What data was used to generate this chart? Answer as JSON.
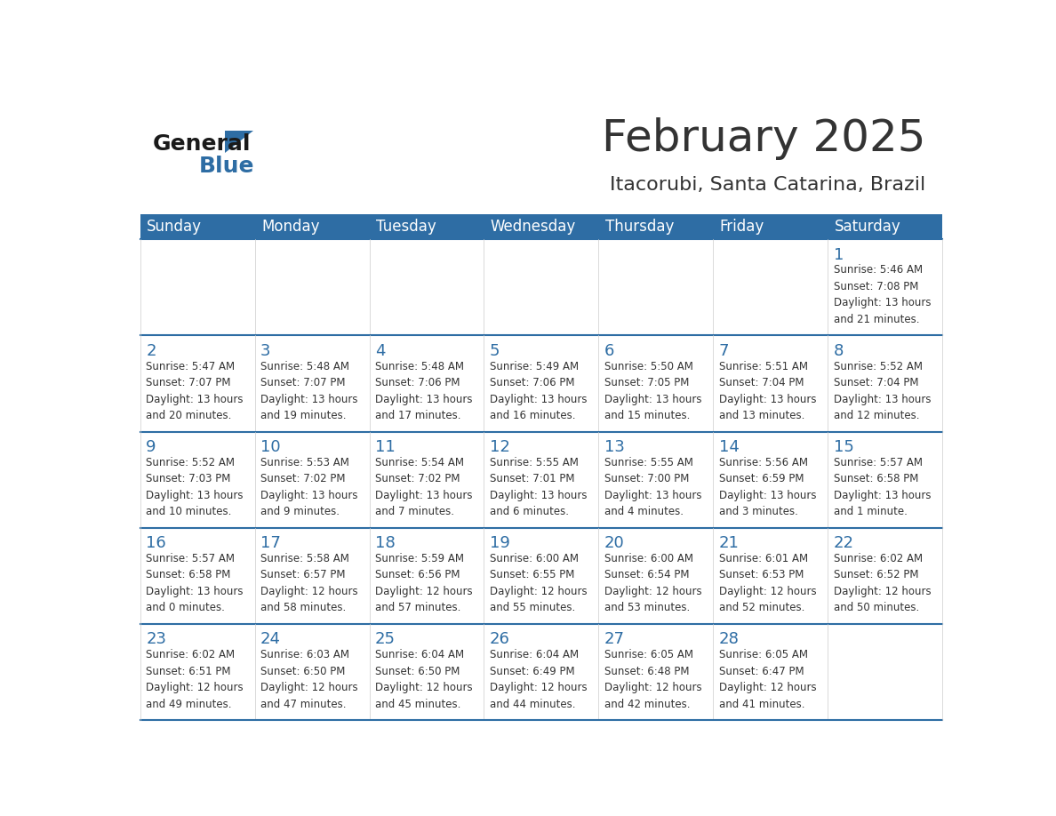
{
  "title": "February 2025",
  "subtitle": "Itacorubi, Santa Catarina, Brazil",
  "header_bg": "#2E6DA4",
  "header_text": "#FFFFFF",
  "border_color": "#2E6DA4",
  "day_headers": [
    "Sunday",
    "Monday",
    "Tuesday",
    "Wednesday",
    "Thursday",
    "Friday",
    "Saturday"
  ],
  "calendar_data": [
    [
      null,
      null,
      null,
      null,
      null,
      null,
      {
        "day": 1,
        "sunrise": "5:46 AM",
        "sunset": "7:08 PM",
        "daylight": "13 hours\nand 21 minutes."
      }
    ],
    [
      {
        "day": 2,
        "sunrise": "5:47 AM",
        "sunset": "7:07 PM",
        "daylight": "13 hours\nand 20 minutes."
      },
      {
        "day": 3,
        "sunrise": "5:48 AM",
        "sunset": "7:07 PM",
        "daylight": "13 hours\nand 19 minutes."
      },
      {
        "day": 4,
        "sunrise": "5:48 AM",
        "sunset": "7:06 PM",
        "daylight": "13 hours\nand 17 minutes."
      },
      {
        "day": 5,
        "sunrise": "5:49 AM",
        "sunset": "7:06 PM",
        "daylight": "13 hours\nand 16 minutes."
      },
      {
        "day": 6,
        "sunrise": "5:50 AM",
        "sunset": "7:05 PM",
        "daylight": "13 hours\nand 15 minutes."
      },
      {
        "day": 7,
        "sunrise": "5:51 AM",
        "sunset": "7:04 PM",
        "daylight": "13 hours\nand 13 minutes."
      },
      {
        "day": 8,
        "sunrise": "5:52 AM",
        "sunset": "7:04 PM",
        "daylight": "13 hours\nand 12 minutes."
      }
    ],
    [
      {
        "day": 9,
        "sunrise": "5:52 AM",
        "sunset": "7:03 PM",
        "daylight": "13 hours\nand 10 minutes."
      },
      {
        "day": 10,
        "sunrise": "5:53 AM",
        "sunset": "7:02 PM",
        "daylight": "13 hours\nand 9 minutes."
      },
      {
        "day": 11,
        "sunrise": "5:54 AM",
        "sunset": "7:02 PM",
        "daylight": "13 hours\nand 7 minutes."
      },
      {
        "day": 12,
        "sunrise": "5:55 AM",
        "sunset": "7:01 PM",
        "daylight": "13 hours\nand 6 minutes."
      },
      {
        "day": 13,
        "sunrise": "5:55 AM",
        "sunset": "7:00 PM",
        "daylight": "13 hours\nand 4 minutes."
      },
      {
        "day": 14,
        "sunrise": "5:56 AM",
        "sunset": "6:59 PM",
        "daylight": "13 hours\nand 3 minutes."
      },
      {
        "day": 15,
        "sunrise": "5:57 AM",
        "sunset": "6:58 PM",
        "daylight": "13 hours\nand 1 minute."
      }
    ],
    [
      {
        "day": 16,
        "sunrise": "5:57 AM",
        "sunset": "6:58 PM",
        "daylight": "13 hours\nand 0 minutes."
      },
      {
        "day": 17,
        "sunrise": "5:58 AM",
        "sunset": "6:57 PM",
        "daylight": "12 hours\nand 58 minutes."
      },
      {
        "day": 18,
        "sunrise": "5:59 AM",
        "sunset": "6:56 PM",
        "daylight": "12 hours\nand 57 minutes."
      },
      {
        "day": 19,
        "sunrise": "6:00 AM",
        "sunset": "6:55 PM",
        "daylight": "12 hours\nand 55 minutes."
      },
      {
        "day": 20,
        "sunrise": "6:00 AM",
        "sunset": "6:54 PM",
        "daylight": "12 hours\nand 53 minutes."
      },
      {
        "day": 21,
        "sunrise": "6:01 AM",
        "sunset": "6:53 PM",
        "daylight": "12 hours\nand 52 minutes."
      },
      {
        "day": 22,
        "sunrise": "6:02 AM",
        "sunset": "6:52 PM",
        "daylight": "12 hours\nand 50 minutes."
      }
    ],
    [
      {
        "day": 23,
        "sunrise": "6:02 AM",
        "sunset": "6:51 PM",
        "daylight": "12 hours\nand 49 minutes."
      },
      {
        "day": 24,
        "sunrise": "6:03 AM",
        "sunset": "6:50 PM",
        "daylight": "12 hours\nand 47 minutes."
      },
      {
        "day": 25,
        "sunrise": "6:04 AM",
        "sunset": "6:50 PM",
        "daylight": "12 hours\nand 45 minutes."
      },
      {
        "day": 26,
        "sunrise": "6:04 AM",
        "sunset": "6:49 PM",
        "daylight": "12 hours\nand 44 minutes."
      },
      {
        "day": 27,
        "sunrise": "6:05 AM",
        "sunset": "6:48 PM",
        "daylight": "12 hours\nand 42 minutes."
      },
      {
        "day": 28,
        "sunrise": "6:05 AM",
        "sunset": "6:47 PM",
        "daylight": "12 hours\nand 41 minutes."
      },
      null
    ]
  ],
  "text_color": "#333333",
  "day_number_color": "#2E6DA4",
  "logo_general_color": "#1A1A1A",
  "logo_blue_color": "#2E6DA4"
}
